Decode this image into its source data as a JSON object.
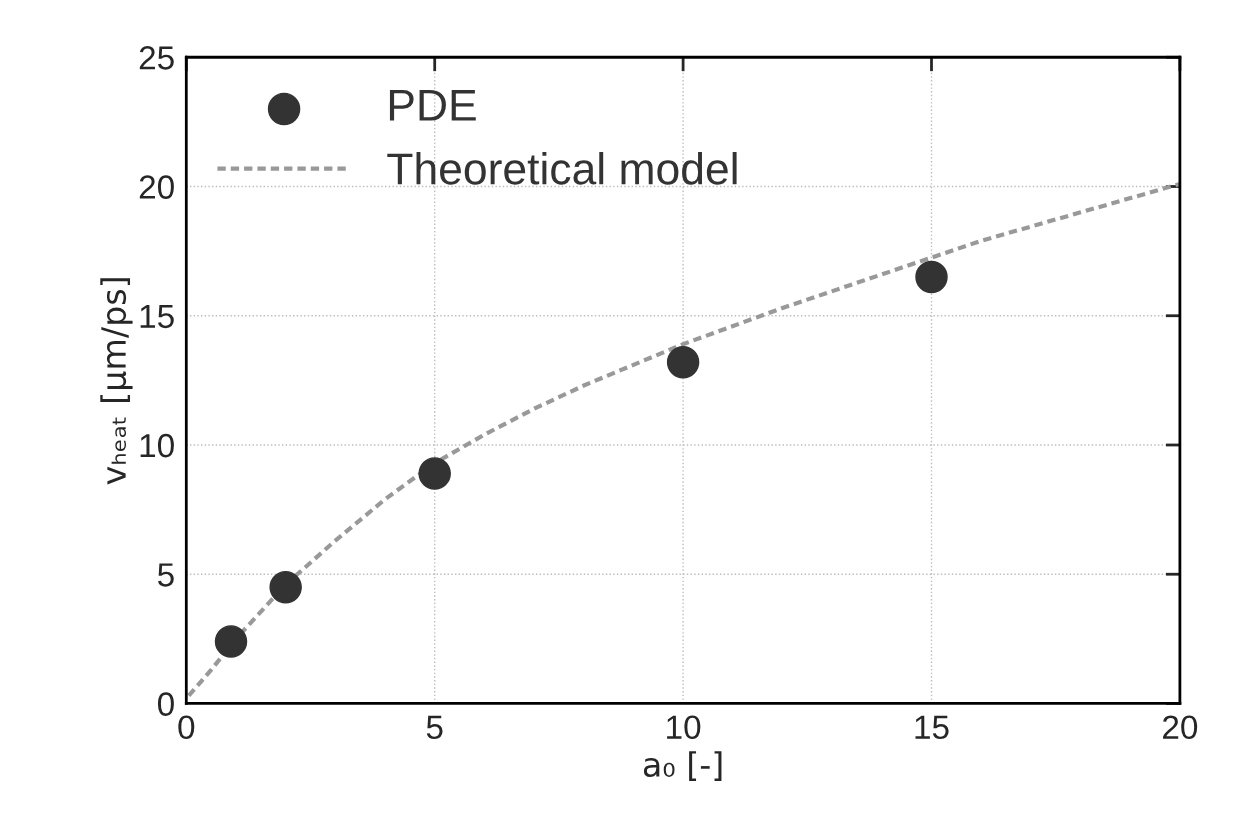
{
  "chart_data": {
    "type": "scatter",
    "xlabel": "a₀ [-]",
    "ylabel": "vₕₑₐₜ [µm/ps]",
    "xlim": [
      0,
      20
    ],
    "ylim": [
      0,
      25
    ],
    "xticks": [
      0,
      5,
      10,
      15,
      20
    ],
    "yticks": [
      0,
      5,
      10,
      15,
      20,
      25
    ],
    "grid": true,
    "legend": "top left",
    "series": [
      {
        "name": "PDE",
        "color": "#333333",
        "marker": "circle",
        "x": [
          0.9,
          2,
          5,
          10,
          15
        ],
        "values": [
          2.4,
          4.5,
          8.9,
          13.2,
          16.5
        ]
      },
      {
        "name": "Theoretical model",
        "type": "line",
        "color": "#999999",
        "line_style": "dashed",
        "marker": "none",
        "x": [
          0.05,
          0.5,
          1,
          2,
          3,
          4,
          5,
          6,
          7,
          8,
          9,
          10,
          12,
          14,
          16,
          18,
          20
        ],
        "values": [
          0.3,
          1.3,
          2.5,
          4.6,
          6.3,
          7.9,
          9.3,
          10.4,
          11.4,
          12.3,
          13.1,
          13.9,
          15.3,
          16.6,
          17.9,
          19.0,
          20.1
        ]
      }
    ]
  }
}
